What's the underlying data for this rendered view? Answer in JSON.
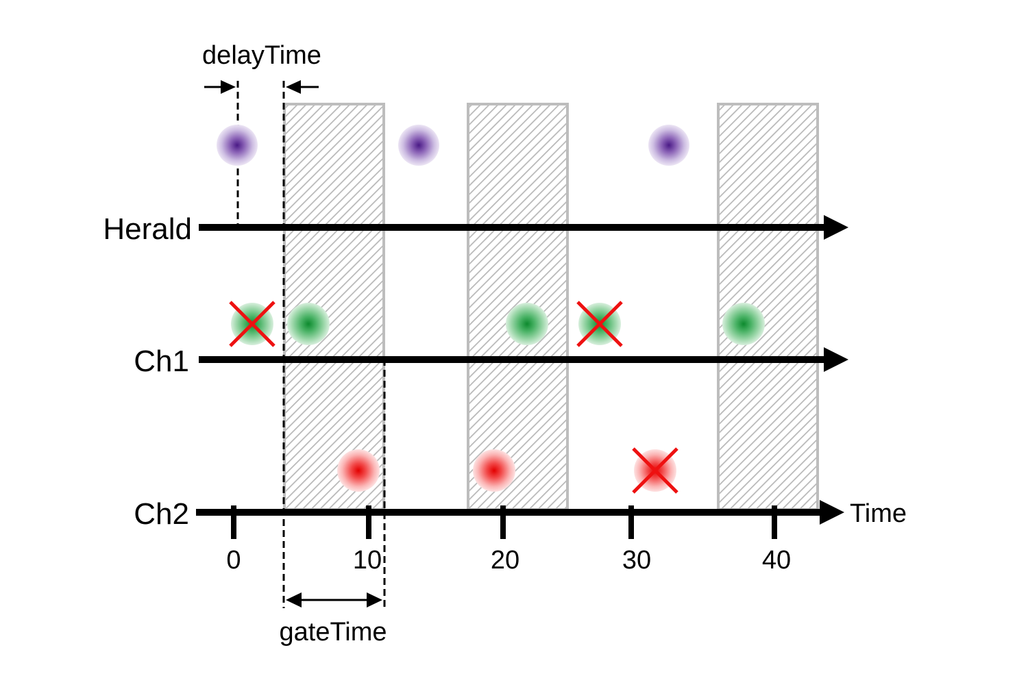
{
  "channels": {
    "herald": "Herald",
    "ch1": "Ch1",
    "ch2": "Ch2"
  },
  "axis": {
    "label": "Time",
    "ticks": [
      "0",
      "10",
      "20",
      "30",
      "40"
    ]
  },
  "annotations": {
    "delay": "delayTime",
    "gate": "gateTime"
  },
  "colors": {
    "herald_photon": "#5b2c8f",
    "ch1_photon": "#1fa040",
    "ch2_photon": "#ee1111",
    "rejected_mark": "#ee1111",
    "gate_hatch": "#bdbdbd"
  }
}
